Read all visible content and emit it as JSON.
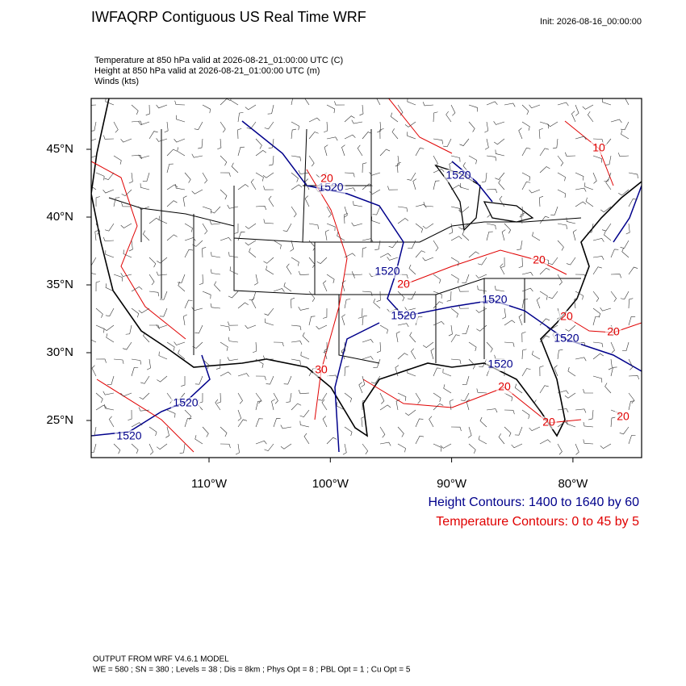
{
  "header": {
    "title": "IWFAQRP Contiguous US Real Time WRF",
    "init": "Init: 2026-08-16_00:00:00"
  },
  "fields": [
    "Temperature at 850 hPa valid at 2026-08-21_01:00:00 UTC   (C)",
    "Height at 850 hPa valid at 2026-08-21_01:00:00 UTC   (m)",
    "Winds   (kts)"
  ],
  "map": {
    "lat_ticks": [
      {
        "value": 45,
        "label": "45°N"
      },
      {
        "value": 40,
        "label": "40°N"
      },
      {
        "value": 35,
        "label": "35°N"
      },
      {
        "value": 30,
        "label": "30°N"
      },
      {
        "value": 25,
        "label": "25°N"
      }
    ],
    "lon_ticks": [
      {
        "value": -110,
        "label": "110°W"
      },
      {
        "value": -100,
        "label": "100°W"
      },
      {
        "value": -90,
        "label": "90°W"
      },
      {
        "value": -80,
        "label": "80°W"
      }
    ],
    "height_labels": [
      "1520",
      "1520",
      "1520",
      "1520",
      "1520",
      "1520",
      "1520",
      "1520",
      "1520"
    ],
    "temperature_labels": [
      "10",
      "20",
      "20",
      "20",
      "20",
      "20",
      "20",
      "20",
      "20",
      "30"
    ]
  },
  "legend": [
    "Height Contours: 1400 to 1640 by 60",
    "Temperature Contours: 0 to 45 by 5"
  ],
  "footer": [
    "OUTPUT FROM WRF V4.6.1 MODEL",
    "WE = 580 ; SN = 380 ; Levels = 38 ; Dis = 8km ; Phys Opt = 8 ; PBL Opt = 1 ; Cu Opt = 5"
  ]
}
